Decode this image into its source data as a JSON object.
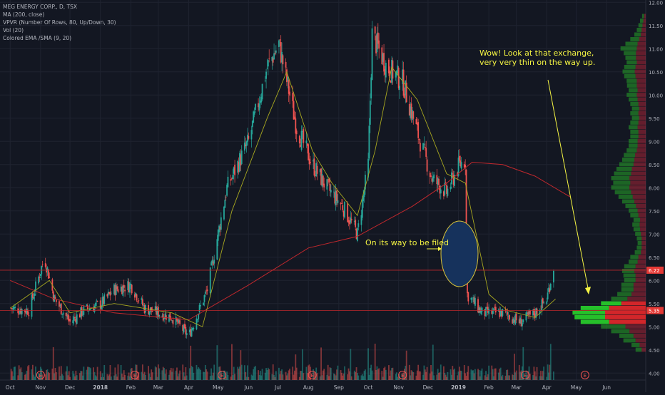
{
  "chart_data": {
    "type": "candlestick",
    "title": "MEG ENERGY CORP., D, TSX",
    "indicators": [
      "MA (200, close)",
      "VPVR (Number Of Rows, 80, Up/Down, 30)",
      "Vol (20)",
      "Colored EMA /SMA (9, 20)"
    ],
    "y_ticks": [
      "12.00",
      "11.50",
      "11.00",
      "10.50",
      "10.00",
      "9.50",
      "9.00",
      "8.50",
      "8.00",
      "7.50",
      "7.00",
      "6.50",
      "6.00",
      "5.50",
      "5.00",
      "4.50",
      "4.00"
    ],
    "ylim": [
      3.85,
      12.05
    ],
    "x_ticks": [
      "Oct",
      "Nov",
      "Dec",
      "2018",
      "Feb",
      "Mar",
      "Apr",
      "May",
      "Jun",
      "Jul",
      "Aug",
      "Sep",
      "Oct",
      "Nov",
      "Dec",
      "2019",
      "Feb",
      "Mar",
      "Apr",
      "May",
      "Jun"
    ],
    "price_path": [
      [
        "2017-10-01",
        5.4
      ],
      [
        "2017-10-20",
        5.35
      ],
      [
        "2017-11-05",
        6.5
      ],
      [
        "2017-11-15",
        5.6
      ],
      [
        "2017-12-01",
        5.1
      ],
      [
        "2017-12-15",
        5.35
      ],
      [
        "2018-01-02",
        5.5
      ],
      [
        "2018-01-15",
        5.8
      ],
      [
        "2018-02-01",
        5.9
      ],
      [
        "2018-02-15",
        5.4
      ],
      [
        "2018-03-01",
        5.3
      ],
      [
        "2018-03-15",
        5.2
      ],
      [
        "2018-04-01",
        4.8
      ],
      [
        "2018-04-20",
        5.8
      ],
      [
        "2018-05-10",
        8.0
      ],
      [
        "2018-06-01",
        9.0
      ],
      [
        "2018-06-20",
        10.6
      ],
      [
        "2018-07-02",
        11.1
      ],
      [
        "2018-07-20",
        9.3
      ],
      [
        "2018-08-05",
        8.5
      ],
      [
        "2018-08-20",
        8.0
      ],
      [
        "2018-09-05",
        7.6
      ],
      [
        "2018-09-20",
        7.0
      ],
      [
        "2018-10-01",
        8.5
      ],
      [
        "2018-10-05",
        11.3
      ],
      [
        "2018-10-20",
        10.6
      ],
      [
        "2018-11-05",
        10.3
      ],
      [
        "2018-11-20",
        9.2
      ],
      [
        "2018-12-05",
        8.2
      ],
      [
        "2018-12-20",
        7.9
      ],
      [
        "2019-01-02",
        8.5
      ],
      [
        "2019-01-08",
        8.6
      ],
      [
        "2019-01-10",
        5.7
      ],
      [
        "2019-01-25",
        5.3
      ],
      [
        "2019-02-15",
        5.3
      ],
      [
        "2019-03-05",
        5.1
      ],
      [
        "2019-03-20",
        5.3
      ],
      [
        "2019-04-01",
        5.6
      ],
      [
        "2019-04-08",
        6.3
      ]
    ],
    "ma200": [
      [
        "2017-10-01",
        6.0
      ],
      [
        "2017-11-15",
        5.6
      ],
      [
        "2018-01-15",
        5.3
      ],
      [
        "2018-04-01",
        5.15
      ],
      [
        "2018-06-01",
        5.9
      ],
      [
        "2018-08-01",
        6.7
      ],
      [
        "2018-09-20",
        6.95
      ],
      [
        "2018-11-15",
        7.6
      ],
      [
        "2018-12-20",
        8.1
      ],
      [
        "2019-01-15",
        8.55
      ],
      [
        "2019-02-15",
        8.5
      ],
      [
        "2019-03-20",
        8.25
      ],
      [
        "2019-04-25",
        7.8
      ]
    ],
    "ema_sma": [
      [
        "2017-10-01",
        5.4
      ],
      [
        "2017-11-10",
        6.0
      ],
      [
        "2017-12-01",
        5.3
      ],
      [
        "2018-01-15",
        5.5
      ],
      [
        "2018-03-15",
        5.3
      ],
      [
        "2018-04-15",
        5.0
      ],
      [
        "2018-05-15",
        7.5
      ],
      [
        "2018-06-20",
        9.5
      ],
      [
        "2018-07-10",
        10.5
      ],
      [
        "2018-08-05",
        8.8
      ],
      [
        "2018-08-25",
        8.1
      ],
      [
        "2018-09-20",
        7.4
      ],
      [
        "2018-10-08",
        8.8
      ],
      [
        "2018-10-25",
        10.6
      ],
      [
        "2018-11-20",
        9.9
      ],
      [
        "2018-12-20",
        8.3
      ],
      [
        "2019-01-08",
        8.1
      ],
      [
        "2019-02-01",
        5.7
      ],
      [
        "2019-02-20",
        5.35
      ],
      [
        "2019-03-20",
        5.2
      ],
      [
        "2019-04-10",
        5.6
      ]
    ],
    "horizontal_lines": [
      6.22,
      5.35
    ],
    "price_labels": [
      "6.22",
      "5.35"
    ],
    "vpvr_rows": [
      [
        4.5,
        0.15,
        0.1
      ],
      [
        4.6,
        0.2,
        0.15
      ],
      [
        4.7,
        0.3,
        0.25
      ],
      [
        4.8,
        0.35,
        0.3
      ],
      [
        4.9,
        0.45,
        0.4
      ],
      [
        5.0,
        0.6,
        0.5
      ],
      [
        5.1,
        0.7,
        0.9
      ],
      [
        5.2,
        0.75,
        1.0
      ],
      [
        5.3,
        0.8,
        1.0
      ],
      [
        5.4,
        0.7,
        0.9
      ],
      [
        5.5,
        0.5,
        0.6
      ],
      [
        5.6,
        0.4,
        0.45
      ],
      [
        5.7,
        0.35,
        0.35
      ],
      [
        5.8,
        0.3,
        0.3
      ],
      [
        5.9,
        0.3,
        0.3
      ],
      [
        6.0,
        0.28,
        0.25
      ],
      [
        6.1,
        0.3,
        0.25
      ],
      [
        6.2,
        0.3,
        0.28
      ],
      [
        6.3,
        0.28,
        0.25
      ],
      [
        6.4,
        0.22,
        0.2
      ],
      [
        6.5,
        0.2,
        0.18
      ],
      [
        6.6,
        0.15,
        0.12
      ],
      [
        6.7,
        0.12,
        0.1
      ],
      [
        6.8,
        0.1,
        0.1
      ],
      [
        6.9,
        0.12,
        0.1
      ],
      [
        7.0,
        0.14,
        0.12
      ],
      [
        7.1,
        0.16,
        0.14
      ],
      [
        7.2,
        0.18,
        0.15
      ],
      [
        7.3,
        0.16,
        0.14
      ],
      [
        7.4,
        0.2,
        0.18
      ],
      [
        7.5,
        0.22,
        0.2
      ],
      [
        7.6,
        0.26,
        0.24
      ],
      [
        7.7,
        0.3,
        0.28
      ],
      [
        7.8,
        0.35,
        0.32
      ],
      [
        7.9,
        0.4,
        0.36
      ],
      [
        8.0,
        0.45,
        0.4
      ],
      [
        8.1,
        0.42,
        0.38
      ],
      [
        8.2,
        0.45,
        0.4
      ],
      [
        8.3,
        0.42,
        0.36
      ],
      [
        8.4,
        0.38,
        0.34
      ],
      [
        8.5,
        0.35,
        0.3
      ],
      [
        8.6,
        0.3,
        0.28
      ],
      [
        8.7,
        0.28,
        0.26
      ],
      [
        8.8,
        0.25,
        0.22
      ],
      [
        8.9,
        0.22,
        0.2
      ],
      [
        9.0,
        0.22,
        0.2
      ],
      [
        9.1,
        0.2,
        0.18
      ],
      [
        9.2,
        0.2,
        0.18
      ],
      [
        9.3,
        0.22,
        0.2
      ],
      [
        9.4,
        0.2,
        0.18
      ],
      [
        9.5,
        0.18,
        0.16
      ],
      [
        9.6,
        0.2,
        0.18
      ],
      [
        9.7,
        0.18,
        0.16
      ],
      [
        9.8,
        0.2,
        0.18
      ],
      [
        9.9,
        0.22,
        0.2
      ],
      [
        10.0,
        0.25,
        0.22
      ],
      [
        10.1,
        0.22,
        0.2
      ],
      [
        10.2,
        0.24,
        0.22
      ],
      [
        10.3,
        0.25,
        0.22
      ],
      [
        10.4,
        0.28,
        0.25
      ],
      [
        10.5,
        0.3,
        0.27
      ],
      [
        10.6,
        0.28,
        0.25
      ],
      [
        10.7,
        0.25,
        0.22
      ],
      [
        10.8,
        0.26,
        0.24
      ],
      [
        10.9,
        0.3,
        0.24
      ],
      [
        11.0,
        0.4,
        0.22
      ],
      [
        11.1,
        0.3,
        0.2
      ],
      [
        11.2,
        0.22,
        0.16
      ],
      [
        11.3,
        0.16,
        0.12
      ],
      [
        11.4,
        0.12,
        0.1
      ],
      [
        11.5,
        0.1,
        0.08
      ],
      [
        11.6,
        0.08,
        0.06
      ],
      [
        11.7,
        0.05,
        0.04
      ]
    ],
    "annotations": [
      {
        "text": "Wow! Look at that exchange,\nvery very thin on the way up."
      },
      {
        "text": "On its way to be filed"
      }
    ],
    "earnings_marker": "E",
    "colors": {
      "background": "#131722",
      "grid": "#1f2330",
      "up": "#26a69a",
      "down": "#ef5350",
      "ma200": "#c0282d",
      "ema": "#a8a820",
      "annotation": "#f5f543",
      "ellipse": "#16325c"
    }
  }
}
